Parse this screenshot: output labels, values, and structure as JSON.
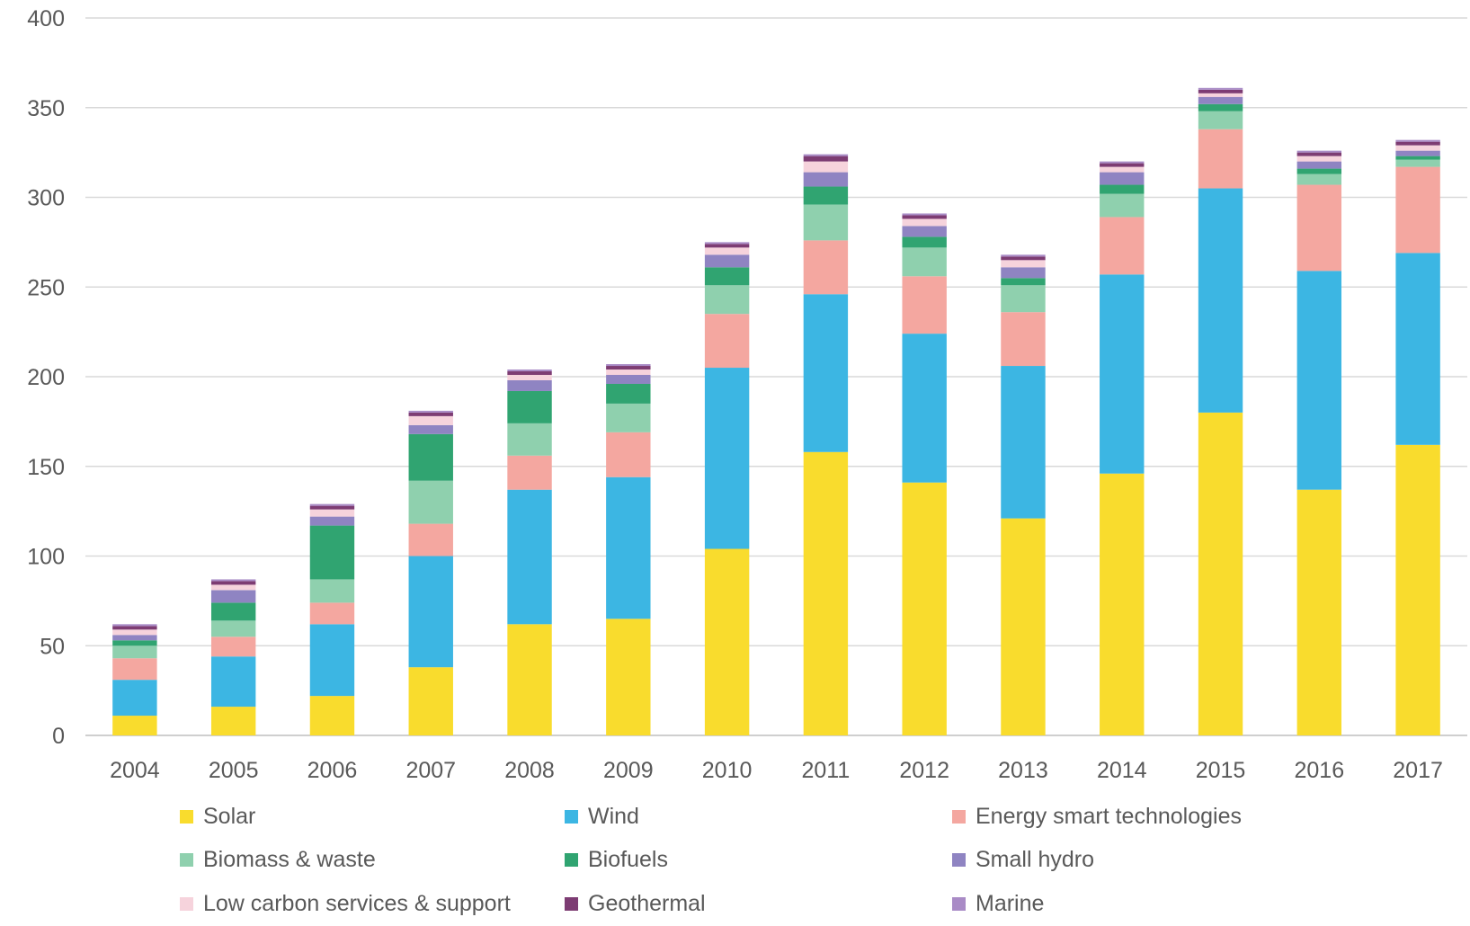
{
  "chart_data": {
    "type": "bar",
    "stacked": true,
    "title": "",
    "xlabel": "",
    "ylabel": "",
    "ylim": [
      0,
      400
    ],
    "yticks": [
      0,
      50,
      100,
      150,
      200,
      250,
      300,
      350,
      400
    ],
    "grid": true,
    "legend_position": "bottom",
    "categories": [
      "2004",
      "2005",
      "2006",
      "2007",
      "2008",
      "2009",
      "2010",
      "2011",
      "2012",
      "2013",
      "2014",
      "2015",
      "2016",
      "2017"
    ],
    "series": [
      {
        "name": "Solar",
        "color": "#f9dc2d",
        "values": [
          11,
          16,
          22,
          38,
          62,
          65,
          104,
          158,
          141,
          121,
          146,
          180,
          137,
          162
        ]
      },
      {
        "name": "Wind",
        "color": "#3cb6e3",
        "values": [
          20,
          28,
          40,
          62,
          75,
          79,
          101,
          88,
          83,
          85,
          111,
          125,
          122,
          107
        ]
      },
      {
        "name": "Energy smart technologies",
        "color": "#f4a7a0",
        "values": [
          12,
          11,
          12,
          18,
          19,
          25,
          30,
          30,
          32,
          30,
          32,
          33,
          48,
          48
        ]
      },
      {
        "name": "Biomass & waste",
        "color": "#8fd0ae",
        "values": [
          7,
          9,
          13,
          24,
          18,
          16,
          16,
          20,
          16,
          15,
          13,
          10,
          6,
          4
        ]
      },
      {
        "name": "Biofuels",
        "color": "#30a471",
        "values": [
          3,
          10,
          30,
          26,
          18,
          11,
          10,
          10,
          6,
          4,
          5,
          4,
          3,
          2
        ]
      },
      {
        "name": "Small hydro",
        "color": "#8f84c2",
        "values": [
          3,
          7,
          5,
          5,
          6,
          5,
          7,
          8,
          6,
          6,
          7,
          4,
          4,
          3
        ]
      },
      {
        "name": "Low carbon services & support",
        "color": "#f6d3dc",
        "values": [
          3,
          3,
          4,
          5,
          3,
          3,
          4,
          6,
          4,
          4,
          3,
          2,
          3,
          3
        ]
      },
      {
        "name": "Geothermal",
        "color": "#7d3c73",
        "values": [
          2,
          2,
          2,
          2,
          2,
          2,
          2,
          3,
          2,
          2,
          2,
          2,
          2,
          2
        ]
      },
      {
        "name": "Marine",
        "color": "#a98bc6",
        "values": [
          1,
          1,
          1,
          1,
          1,
          1,
          1,
          1,
          1,
          1,
          1,
          1,
          1,
          1
        ]
      }
    ]
  }
}
